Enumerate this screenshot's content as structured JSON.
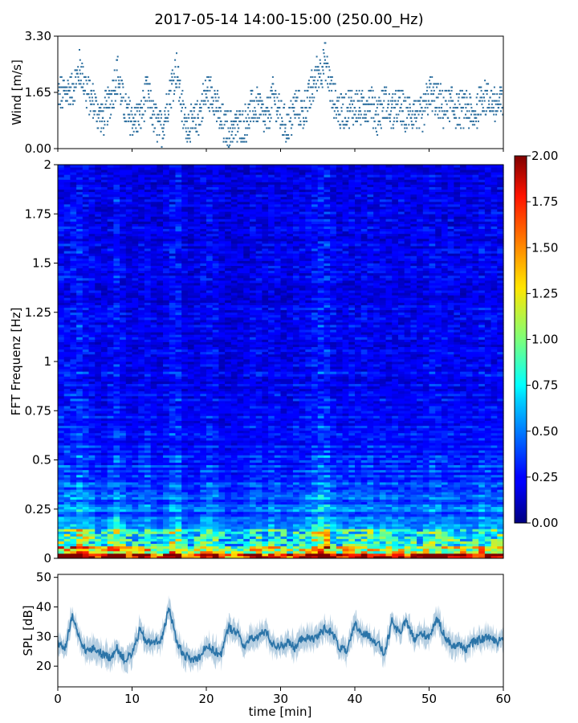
{
  "title": "2017-05-14 14:00-15:00 (250.00_Hz)",
  "chart_data": [
    {
      "id": "wind",
      "type": "scatter",
      "ylabel": "Wind [m/s]",
      "ylim": [
        0,
        3.3
      ],
      "yticks": [
        "0.00",
        "1.65",
        "3.30"
      ],
      "ytick_values": [
        0,
        1.65,
        3.3
      ],
      "xlim": [
        0,
        60
      ],
      "color": "#2b6e9e",
      "x": [
        0,
        2,
        3,
        4,
        5,
        6,
        7,
        8,
        9,
        10,
        11,
        12,
        13,
        14,
        15,
        16,
        17,
        18,
        19,
        20,
        21,
        22,
        23,
        24,
        25,
        26,
        27,
        28,
        29,
        30,
        31,
        32,
        33,
        34,
        35,
        36,
        37,
        38,
        39,
        40,
        41,
        42,
        43,
        44,
        45,
        46,
        47,
        48,
        49,
        50,
        51,
        52,
        53,
        54,
        55,
        56,
        57,
        58,
        59,
        60
      ],
      "y": [
        1.5,
        1.7,
        2.3,
        1.6,
        1.2,
        0.8,
        1.3,
        2.2,
        1.1,
        0.8,
        0.8,
        1.6,
        0.8,
        0.5,
        1.5,
        2.3,
        0.8,
        0.6,
        0.9,
        1.6,
        1.5,
        0.7,
        0.5,
        0.6,
        0.6,
        1.1,
        1.2,
        0.7,
        1.5,
        0.9,
        0.6,
        1.2,
        1.0,
        1.5,
        2.2,
        2.5,
        1.5,
        1.0,
        1.1,
        1.2,
        1.1,
        1.4,
        0.9,
        1.3,
        1.0,
        1.2,
        0.9,
        1.1,
        0.8,
        1.6,
        1.4,
        1.1,
        1.3,
        1.0,
        1.2,
        0.8,
        1.5,
        1.4,
        1.2,
        1.3
      ]
    },
    {
      "id": "spectrogram",
      "type": "heatmap",
      "ylabel": "FFT Frequenz [Hz]",
      "ylim": [
        0,
        2
      ],
      "yticks": [
        "0",
        "0.25",
        "0.5",
        "0.75",
        "1",
        "1.25",
        "1.5",
        "1.75",
        "2"
      ],
      "ytick_values": [
        0,
        0.25,
        0.5,
        0.75,
        1,
        1.25,
        1.5,
        1.75,
        2
      ],
      "xlim": [
        0,
        60
      ],
      "colormap": "jet",
      "colorbar_range": [
        0,
        2
      ],
      "colorbar_ticks": [
        "0.00",
        "0.25",
        "0.50",
        "0.75",
        "1.00",
        "1.25",
        "1.50",
        "1.75",
        "2.00"
      ],
      "colorbar_tick_values": [
        0,
        0.25,
        0.5,
        0.75,
        1,
        1.25,
        1.5,
        1.75,
        2
      ]
    },
    {
      "id": "spl",
      "type": "line",
      "ylabel": "SPL [dB]",
      "xlabel": "time [min]",
      "xlim": [
        0,
        60
      ],
      "ylim": [
        13,
        51
      ],
      "yticks": [
        "20",
        "30",
        "40",
        "50"
      ],
      "ytick_values": [
        20,
        30,
        40,
        50
      ],
      "xticks": [
        "0",
        "10",
        "20",
        "30",
        "40",
        "50",
        "60"
      ],
      "xtick_values": [
        0,
        10,
        20,
        30,
        40,
        50,
        60
      ],
      "color": "#2b74a8",
      "x": [
        0,
        1,
        2,
        3,
        4,
        5,
        6,
        7,
        8,
        9,
        10,
        11,
        12,
        13,
        14,
        15,
        16,
        17,
        18,
        19,
        20,
        21,
        22,
        23,
        24,
        25,
        26,
        27,
        28,
        29,
        30,
        31,
        32,
        33,
        34,
        35,
        36,
        37,
        38,
        39,
        40,
        41,
        42,
        43,
        44,
        45,
        46,
        47,
        48,
        49,
        50,
        51,
        52,
        53,
        54,
        55,
        56,
        57,
        58,
        59,
        60
      ],
      "y": [
        28,
        26,
        37,
        28,
        25,
        26,
        24,
        23,
        26,
        22,
        24,
        32,
        28,
        28,
        29,
        40,
        28,
        24,
        22,
        23,
        27,
        25,
        24,
        33,
        32,
        27,
        29,
        30,
        32,
        27,
        27,
        28,
        26,
        30,
        29,
        30,
        33,
        31,
        26,
        25,
        34,
        31,
        30,
        28,
        24,
        35,
        31,
        35,
        29,
        31,
        30,
        36,
        31,
        27,
        27,
        26,
        28,
        29,
        30,
        28,
        30
      ]
    }
  ]
}
